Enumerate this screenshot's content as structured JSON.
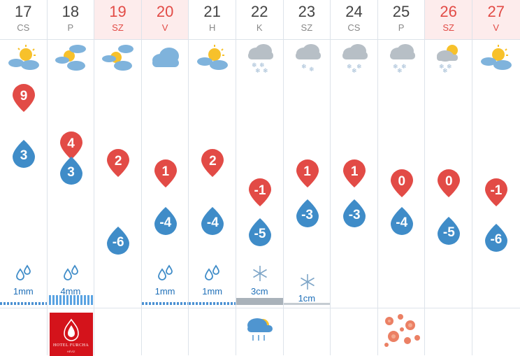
{
  "colors": {
    "max_temp": "#e24b46",
    "min_temp": "#3f8cc8",
    "weekend_bg": "#fdecec",
    "weekend_text": "#e24b46",
    "precip_text": "#1e6fb8"
  },
  "days": [
    {
      "date": "17",
      "dow": "CS",
      "weekend": false,
      "icon": "sun-cloud-icon",
      "max": "9",
      "min": "3",
      "precip": {
        "type": "rain-icon",
        "amount": "1mm"
      }
    },
    {
      "date": "18",
      "dow": "P",
      "weekend": false,
      "icon": "sun-clouds-icon",
      "max": "4",
      "min": "3",
      "precip": {
        "type": "rain-icon",
        "amount": "4mm"
      },
      "ad": {
        "brand": "HOTEL FURCHA",
        "sub": "HÉVÍZ"
      }
    },
    {
      "date": "19",
      "dow": "SZ",
      "weekend": true,
      "icon": "sun-clouds-icon",
      "max": "2",
      "min": "-6",
      "precip": null
    },
    {
      "date": "20",
      "dow": "V",
      "weekend": true,
      "icon": "cloud-icon",
      "max": "1",
      "min": "-4",
      "precip": {
        "type": "rain-icon",
        "amount": "1mm"
      }
    },
    {
      "date": "21",
      "dow": "H",
      "weekend": false,
      "icon": "sun-cloud-icon",
      "max": "2",
      "min": "-4",
      "precip": {
        "type": "rain-icon",
        "amount": "1mm"
      }
    },
    {
      "date": "22",
      "dow": "K",
      "weekend": false,
      "icon": "snow-cloud-icon",
      "max": "-1",
      "min": "-5",
      "precip": {
        "type": "snowflake-icon",
        "amount": "3cm"
      },
      "bottom_icon": "snow-sun-cloud-icon"
    },
    {
      "date": "23",
      "dow": "SZ",
      "weekend": false,
      "icon": "snow-cloud-icon",
      "max": "1",
      "min": "-3",
      "precip": {
        "type": "snowflake-icon",
        "amount": "1cm"
      }
    },
    {
      "date": "24",
      "dow": "CS",
      "weekend": false,
      "icon": "snow-cloud-icon",
      "max": "1",
      "min": "-3",
      "precip": null
    },
    {
      "date": "25",
      "dow": "P",
      "weekend": false,
      "icon": "snow-cloud-icon",
      "max": "0",
      "min": "-4",
      "precip": null,
      "bottom_icon": "flower-pattern-icon"
    },
    {
      "date": "26",
      "dow": "SZ",
      "weekend": true,
      "icon": "sun-snow-cloud-icon",
      "max": "0",
      "min": "-5",
      "precip": null
    },
    {
      "date": "27",
      "dow": "V",
      "weekend": true,
      "icon": "sun-cloud-icon",
      "max": "-1",
      "min": "-6",
      "precip": null
    }
  ]
}
